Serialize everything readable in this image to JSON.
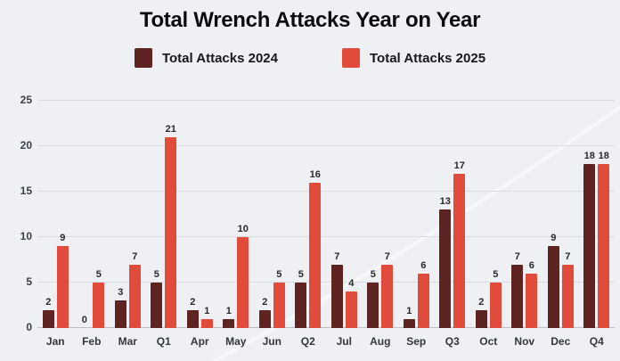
{
  "title": "Total Wrench Attacks Year on Year",
  "legend": {
    "items": [
      {
        "label": "Total Attacks 2024",
        "color": "#5e2421"
      },
      {
        "label": "Total Attacks 2025",
        "color": "#e14b3c"
      }
    ]
  },
  "colors": {
    "background": "#eef0f3",
    "gridline": "#d9dbdf",
    "baseline": "#bcbfc5",
    "series_2024": "#5e2421",
    "series_2025": "#e14b3c"
  },
  "chart_data": {
    "type": "bar",
    "title": "Total Wrench Attacks Year on Year",
    "categories": [
      "Jan",
      "Feb",
      "Mar",
      "Q1",
      "Apr",
      "May",
      "Jun",
      "Q2",
      "Jul",
      "Aug",
      "Sep",
      "Q3",
      "Oct",
      "Nov",
      "Dec",
      "Q4"
    ],
    "series": [
      {
        "name": "Total Attacks 2024",
        "color": "#5e2421",
        "values": [
          2,
          0,
          3,
          5,
          2,
          1,
          2,
          5,
          7,
          5,
          1,
          13,
          2,
          7,
          9,
          18
        ]
      },
      {
        "name": "Total Attacks 2025",
        "color": "#e14b3c",
        "values": [
          9,
          5,
          7,
          21,
          1,
          10,
          5,
          16,
          4,
          7,
          6,
          17,
          5,
          6,
          7,
          18
        ]
      }
    ],
    "xlabel": "",
    "ylabel": "",
    "ylim": [
      0,
      25
    ],
    "yticks": [
      0,
      5,
      10,
      15,
      20,
      25
    ],
    "grid": true,
    "data_labels": true,
    "legend_position": "top"
  }
}
